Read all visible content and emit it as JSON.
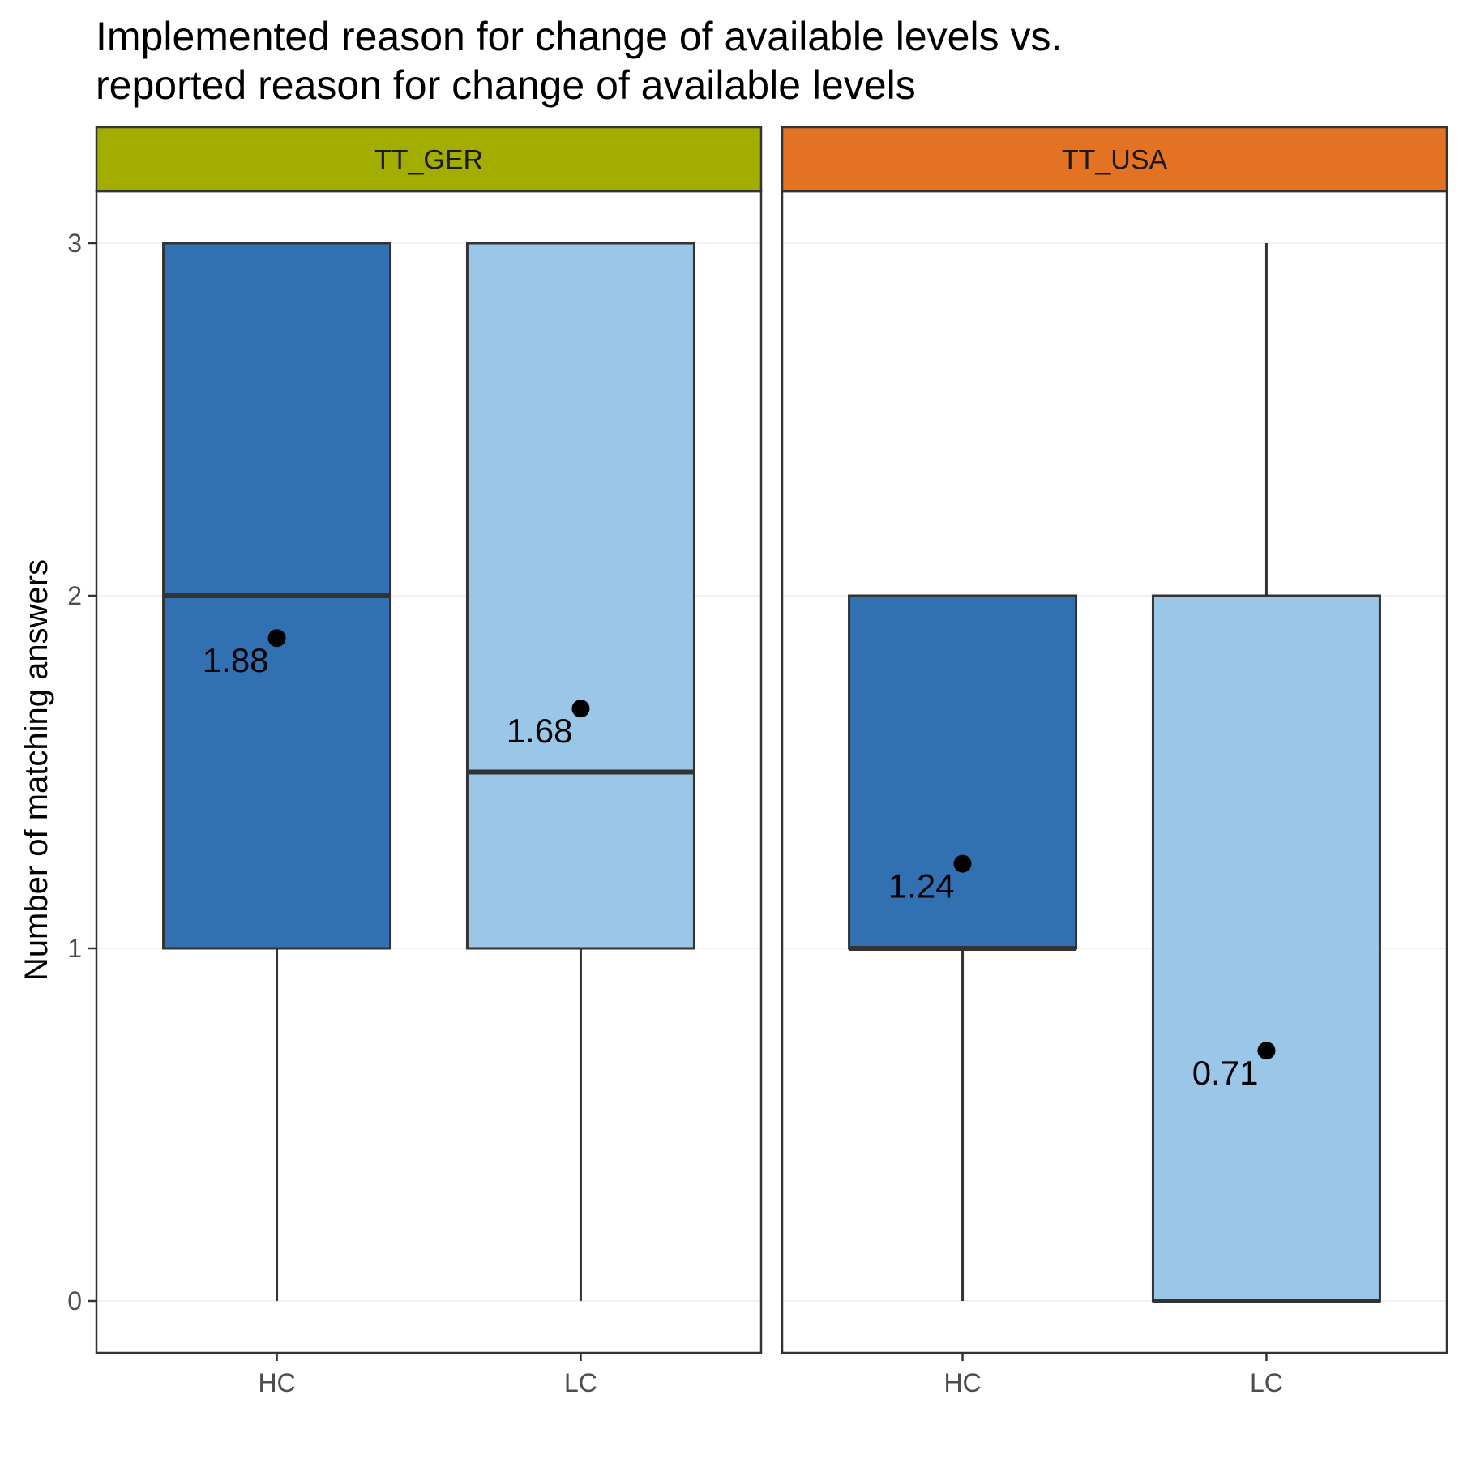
{
  "chart_data": {
    "type": "boxplot",
    "title_lines": [
      "Implemented reason for change of available levels vs.",
      "reported reason for change of available levels"
    ],
    "xlabel": "",
    "ylabel": "Number of matching answers",
    "ylim": [
      -0.15,
      3.15
    ],
    "y_ticks": [
      0,
      1,
      2,
      3
    ],
    "grid": true,
    "categories": [
      "HC",
      "LC"
    ],
    "category_colors": {
      "HC": "#3170B1",
      "LC": "#9AC6E8"
    },
    "panels": [
      {
        "label": "TT_GER",
        "strip_color": "#A2AD00",
        "boxes": [
          {
            "category": "HC",
            "lower_whisker": 0,
            "q1": 1,
            "median": 2,
            "q3": 3,
            "upper_whisker": 3,
            "mean": 1.88,
            "mean_label": "1.88"
          },
          {
            "category": "LC",
            "lower_whisker": 0,
            "q1": 1,
            "median": 1.5,
            "q3": 3,
            "upper_whisker": 3,
            "mean": 1.68,
            "mean_label": "1.68"
          }
        ]
      },
      {
        "label": "TT_USA",
        "strip_color": "#E37222",
        "boxes": [
          {
            "category": "HC",
            "lower_whisker": 0,
            "q1": 1,
            "median": 1,
            "q3": 2,
            "upper_whisker": 2,
            "mean": 1.24,
            "mean_label": "1.24"
          },
          {
            "category": "LC",
            "lower_whisker": 0,
            "q1": 0,
            "median": 0,
            "q3": 2,
            "upper_whisker": 3,
            "mean": 0.71,
            "mean_label": "0.71"
          }
        ]
      }
    ]
  }
}
